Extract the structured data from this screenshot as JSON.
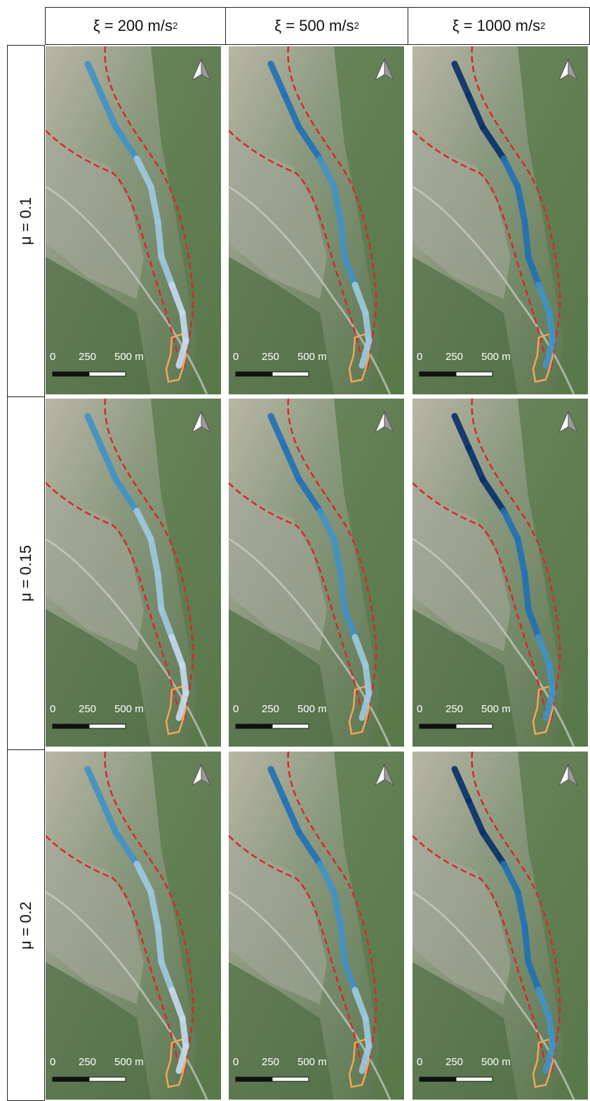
{
  "columns": [
    {
      "prefix": "ξ = 200 m/s",
      "sup": "2"
    },
    {
      "prefix": "ξ = 500 m/s",
      "sup": "2"
    },
    {
      "prefix": "ξ = 1000 m/s",
      "sup": "2"
    }
  ],
  "rows": [
    {
      "label": "μ = 0.1"
    },
    {
      "label": "μ = 0.15"
    },
    {
      "label": "μ = 0.2"
    }
  ],
  "scalebar": {
    "tick0": "0",
    "tick1": "250",
    "tick2": "500 m"
  },
  "colors": {
    "boundary": "#d62828",
    "deposit": "#f2a65a",
    "flow_light": "#c6dbef",
    "flow_mid": "#4292c6",
    "flow_dark": "#08306b",
    "terrain_green": "#5a7a4a",
    "terrain_grey": "#b8bcb0"
  },
  "panels": [
    {
      "row": 0,
      "col": 0,
      "intensity": "light"
    },
    {
      "row": 0,
      "col": 1,
      "intensity": "mid"
    },
    {
      "row": 0,
      "col": 2,
      "intensity": "dark"
    },
    {
      "row": 1,
      "col": 0,
      "intensity": "light"
    },
    {
      "row": 1,
      "col": 1,
      "intensity": "mid"
    },
    {
      "row": 1,
      "col": 2,
      "intensity": "dark"
    },
    {
      "row": 2,
      "col": 0,
      "intensity": "light"
    },
    {
      "row": 2,
      "col": 1,
      "intensity": "mid"
    },
    {
      "row": 2,
      "col": 2,
      "intensity": "dark"
    }
  ],
  "icons": {
    "north_arrow": "north-arrow-icon"
  }
}
